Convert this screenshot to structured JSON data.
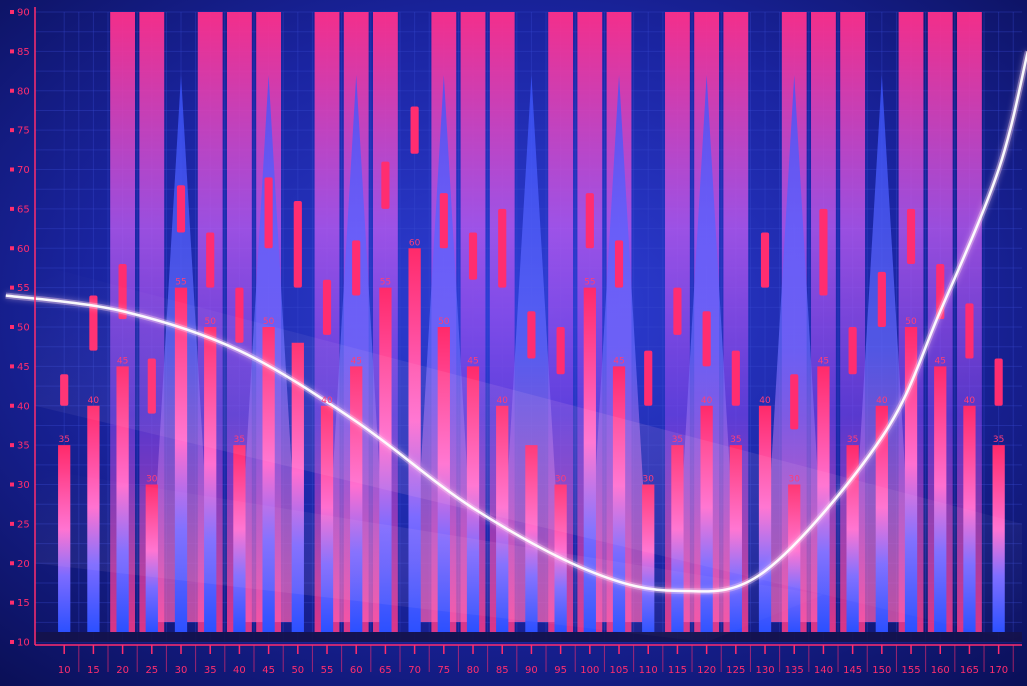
{
  "chart_data": {
    "type": "bar",
    "title": "",
    "xlabel": "",
    "ylabel": "",
    "ylim": [
      10,
      90
    ],
    "grid": true,
    "x": [
      10,
      15,
      20,
      25,
      30,
      35,
      40,
      45,
      50,
      55,
      60,
      65,
      70,
      75,
      80,
      85,
      90,
      95,
      100,
      105,
      110,
      115,
      120,
      125,
      130,
      135,
      140,
      145,
      150,
      155,
      160,
      165,
      170
    ],
    "x_ticks": [
      "10",
      "15",
      "20",
      "25",
      "30",
      "35",
      "40",
      "45",
      "50",
      "55",
      "60",
      "65",
      "70",
      "75",
      "80",
      "85",
      "90",
      "95",
      "100",
      "105",
      "110",
      "115",
      "120",
      "125",
      "130",
      "135",
      "140",
      "145",
      "150",
      "155",
      "160",
      "165",
      "170"
    ],
    "y_ticks": [
      "10",
      "15",
      "20",
      "25",
      "30",
      "35",
      "40",
      "45",
      "50",
      "55",
      "60",
      "65",
      "70",
      "75",
      "80",
      "85",
      "90"
    ],
    "bars": {
      "values": [
        35,
        40,
        45,
        30,
        55,
        50,
        35,
        50,
        48,
        40,
        45,
        55,
        60,
        50,
        45,
        40,
        35,
        30,
        55,
        45,
        30,
        35,
        40,
        35,
        40,
        30,
        45,
        35,
        40,
        50,
        45,
        40,
        35
      ],
      "labels": [
        "35",
        "40",
        "45",
        "30",
        "55",
        "50",
        "35",
        "50",
        "",
        "40",
        "45",
        "55",
        "60",
        "50",
        "45",
        "40",
        "",
        "30",
        "55",
        "45",
        "30",
        "35",
        "40",
        "35",
        "40",
        "30",
        "45",
        "35",
        "40",
        "50",
        "45",
        "40",
        "35"
      ],
      "color": "#ff2a6a"
    },
    "candles": {
      "low": [
        40,
        47,
        51,
        39,
        62,
        55,
        48,
        60,
        55,
        49,
        54,
        65,
        72,
        60,
        56,
        55,
        46,
        44,
        60,
        55,
        40,
        49,
        45,
        40,
        55,
        37,
        54,
        44,
        50,
        58,
        51,
        46,
        40
      ],
      "high": [
        44,
        54,
        58,
        46,
        68,
        62,
        55,
        69,
        66,
        56,
        61,
        71,
        78,
        67,
        62,
        65,
        52,
        50,
        67,
        61,
        47,
        55,
        52,
        47,
        62,
        44,
        65,
        50,
        57,
        65,
        58,
        53,
        46
      ],
      "color": "#ff2d70"
    },
    "backdrop_bars": {
      "x": [
        20,
        25,
        35,
        40,
        45,
        55,
        60,
        65,
        75,
        80,
        85,
        95,
        100,
        105,
        115,
        120,
        125,
        135,
        140,
        145,
        155,
        160,
        165
      ],
      "value": 90,
      "color": "#ff3fa0"
    },
    "triangles": {
      "x": [
        30,
        45,
        60,
        75,
        90,
        105,
        120,
        135,
        150
      ],
      "peak": 82,
      "color": "#3c58ff"
    },
    "trend_curve": {
      "x": [
        0,
        20,
        40,
        60,
        80,
        100,
        115,
        130,
        150,
        160,
        170,
        175
      ],
      "y": [
        54,
        52,
        47,
        38,
        27,
        19,
        16.5,
        19,
        36,
        52,
        70,
        85
      ],
      "color": "#ffffff"
    },
    "colors": {
      "background": "#0b1160",
      "axis": "#ff2d6e",
      "grid": "#3a4ad0"
    }
  }
}
